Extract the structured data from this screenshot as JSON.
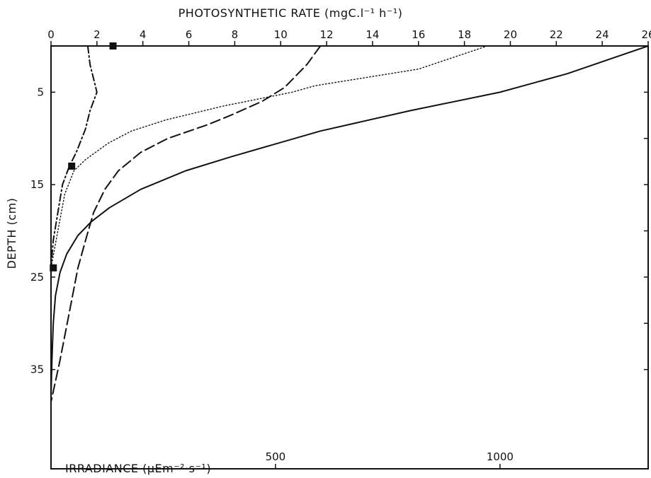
{
  "chart_data": {
    "type": "line",
    "top_axis": {
      "label": "PHOTOSYNTHETIC RATE (mgC.l⁻¹ h⁻¹)",
      "range": [
        0,
        26
      ],
      "ticks": [
        0,
        2,
        4,
        6,
        8,
        10,
        12,
        14,
        16,
        18,
        20,
        22,
        24,
        26
      ]
    },
    "bottom_axis": {
      "label": "IRRADIANCE (µEm⁻²·s⁻¹)",
      "range": [
        0,
        1330
      ],
      "ticks": [
        500,
        1000
      ]
    },
    "y_axis": {
      "label": "DEPTH (cm)",
      "range": [
        0,
        40
      ],
      "inverted": true,
      "ticks": [
        5,
        15,
        25,
        35
      ]
    },
    "grid": false,
    "series": [
      {
        "style": "solid",
        "axis": "bottom",
        "points": [
          [
            1330,
            0
          ],
          [
            1150,
            3
          ],
          [
            1000,
            5
          ],
          [
            800,
            7
          ],
          [
            600,
            9.2
          ],
          [
            400,
            12
          ],
          [
            300,
            13.5
          ],
          [
            200,
            15.5
          ],
          [
            130,
            17.5
          ],
          [
            90,
            19
          ],
          [
            60,
            20.5
          ],
          [
            35,
            22.5
          ],
          [
            20,
            24.5
          ],
          [
            10,
            27
          ],
          [
            5,
            30
          ],
          [
            2,
            34
          ],
          [
            0,
            38
          ]
        ]
      },
      {
        "style": "dashed",
        "axis": "bottom",
        "points": [
          [
            600,
            0
          ],
          [
            570,
            2
          ],
          [
            520,
            4.5
          ],
          [
            470,
            6
          ],
          [
            400,
            7.5
          ],
          [
            350,
            8.5
          ],
          [
            260,
            10
          ],
          [
            200,
            11.5
          ],
          [
            150,
            13.5
          ],
          [
            120,
            15.5
          ],
          [
            95,
            18
          ],
          [
            80,
            20.5
          ],
          [
            60,
            24
          ],
          [
            40,
            29
          ],
          [
            20,
            34
          ],
          [
            0,
            38.5
          ]
        ]
      },
      {
        "style": "dotted",
        "axis": "top",
        "points": [
          [
            19,
            0
          ],
          [
            16,
            2.5
          ],
          [
            11.5,
            4.3
          ],
          [
            10.5,
            5
          ],
          [
            7.5,
            6.5
          ],
          [
            5,
            8
          ],
          [
            3.5,
            9.2
          ],
          [
            2.5,
            10.5
          ],
          [
            1.5,
            12.3
          ],
          [
            1,
            13.5
          ],
          [
            0.6,
            16
          ],
          [
            0.3,
            20
          ],
          [
            0,
            24
          ]
        ]
      },
      {
        "style": "dash-dot",
        "axis": "top",
        "points": [
          [
            1.6,
            0
          ],
          [
            1.7,
            2
          ],
          [
            1.9,
            4
          ],
          [
            2,
            5
          ],
          [
            1.7,
            7
          ],
          [
            1.5,
            9
          ],
          [
            1.1,
            11.5
          ],
          [
            0.8,
            13
          ],
          [
            0.5,
            15
          ],
          [
            0.3,
            18
          ],
          [
            0.1,
            21
          ],
          [
            0,
            24
          ]
        ]
      },
      {
        "style": "markers",
        "axis": "top",
        "points": [
          [
            2.7,
            0
          ],
          [
            0.9,
            13
          ],
          [
            0.1,
            24
          ]
        ]
      }
    ]
  }
}
